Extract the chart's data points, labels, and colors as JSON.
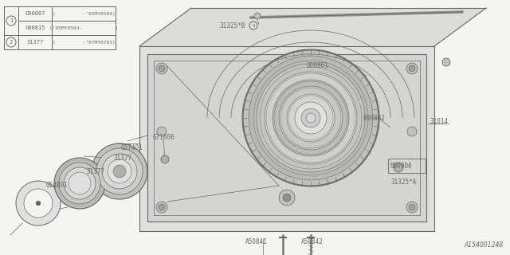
{
  "bg_color": "#f5f5f0",
  "line_color": "#666666",
  "white": "#ffffff",
  "light_gray": "#e0e0e0",
  "mid_gray": "#c8c8c8",
  "dark_gray": "#a0a0a0",
  "diagram_number": "A154001248",
  "legend_rows": [
    {
      "sym": "1",
      "part": "G90807",
      "desc": "(         -’05MY0504)"
    },
    {
      "sym": "",
      "part": "G90815",
      "desc": "(’05MY0504-           )"
    },
    {
      "sym": "2",
      "part": "31377",
      "desc": "(         -’07MY0703)"
    }
  ]
}
